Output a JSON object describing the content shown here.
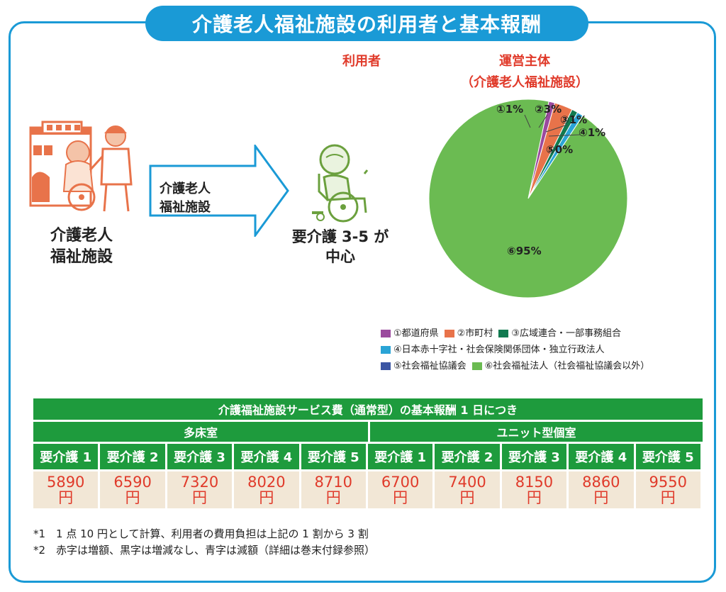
{
  "title": "介護老人福祉施設の利用者と基本報酬",
  "user_heading": "利用者",
  "operator_heading": [
    "運営主体",
    "（介護老人福祉施設）"
  ],
  "facility_label": [
    "介護老人",
    "福祉施設"
  ],
  "arrow_label": [
    "介護老人",
    "福祉施設"
  ],
  "care_level_label": [
    "要介護 3-5 が",
    "中心"
  ],
  "chart_data": {
    "type": "pie",
    "slices": [
      {
        "label": "①1%",
        "category": "①都道府県",
        "value": 1,
        "color": "#9b4a9e"
      },
      {
        "label": "②3%",
        "category": "②市町村",
        "value": 3,
        "color": "#e8734a"
      },
      {
        "label": "③1%",
        "category": "③広域連合・一部事務組合",
        "value": 1,
        "color": "#117a50"
      },
      {
        "label": "④1%",
        "category": "④日本赤十字社・社会保険関係団体・独立行政法人",
        "value": 1,
        "color": "#2aa4d6"
      },
      {
        "label": "⑤0%",
        "category": "⑤社会福祉協議会",
        "value": 0,
        "color": "#3b55a3"
      },
      {
        "label": "⑥95%",
        "category": "⑥社会福祉法人（社会福祉協議会以外）",
        "value": 95,
        "color": "#6bbb52"
      }
    ]
  },
  "table": {
    "header": "介護福祉施設サービス費（通常型）の基本報酬 1 日につき",
    "groups": [
      "多床室",
      "ユニット型個室"
    ],
    "levels": [
      "要介護 1",
      "要介護 2",
      "要介護 3",
      "要介護 4",
      "要介護 5",
      "要介護 1",
      "要介護 2",
      "要介護 3",
      "要介護 4",
      "要介護 5"
    ],
    "values": [
      "5890",
      "6590",
      "7320",
      "8020",
      "8710",
      "6700",
      "7400",
      "8150",
      "8860",
      "9550"
    ],
    "unit": "円"
  },
  "notes": [
    "*1　1 点 10 円として計算、利用者の費用負担は上記の 1 割から 3 割",
    "*2　赤字は増額、黒字は増減なし、青字は減額（詳細は巻末付録参照）"
  ]
}
